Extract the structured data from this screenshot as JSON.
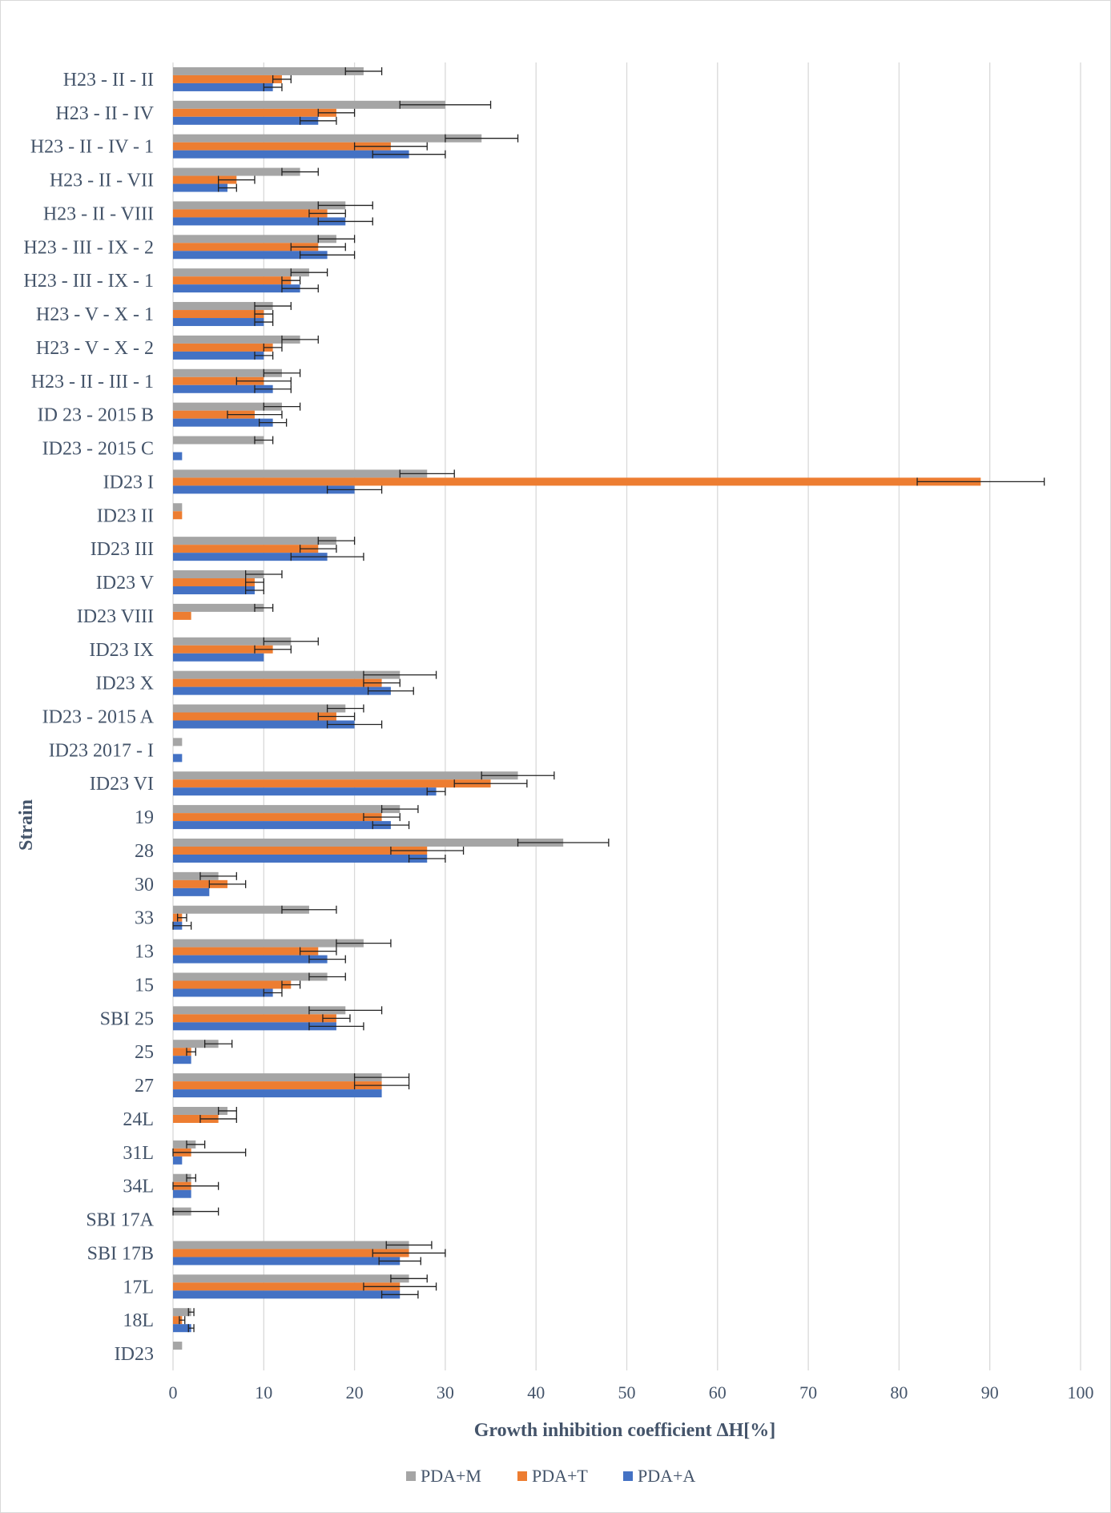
{
  "chart_data": {
    "type": "bar",
    "orientation": "horizontal",
    "xlabel": "Growth inhibition coefficient ΔH[%]",
    "ylabel": "Strain",
    "xlim": [
      0,
      100
    ],
    "xticks": [
      0,
      10,
      20,
      30,
      40,
      50,
      60,
      70,
      80,
      90,
      100
    ],
    "grid": true,
    "legend_position": "bottom",
    "colors": {
      "PDA+M": "#a5a5a5",
      "PDA+T": "#ed7d31",
      "PDA+A": "#4472c4",
      "grid": "#d9d9d9",
      "text": "#44546a"
    },
    "categories": [
      "H23 - II - II",
      "H23 - II - IV",
      "H23 - II - IV - 1",
      "H23 - II - VII",
      "H23 - II - VIII",
      "H23 - III - IX - 2",
      "H23 - III - IX - 1",
      "H23 - V - X - 1",
      "H23 - V - X - 2",
      "H23 - II - III - 1",
      "ID 23 - 2015 B",
      "ID23 - 2015 C",
      "ID23 I",
      "ID23 II",
      "ID23 III",
      "ID23 V",
      "ID23 VIII",
      "ID23 IX",
      "ID23 X",
      "ID23 - 2015 A",
      "ID23 2017 - I",
      "ID23 VI",
      "19",
      "28",
      "30",
      "33",
      "13",
      "15",
      "SBI 25",
      "25",
      "27",
      "24L",
      "31L",
      "34L",
      "SBI 17A",
      "SBI 17B",
      "17L",
      "18L",
      "ID23"
    ],
    "series": [
      {
        "name": "PDA+M",
        "values": [
          21,
          30,
          34,
          14,
          19,
          18,
          15,
          11,
          14,
          12,
          12,
          10,
          28,
          1,
          18,
          10,
          10,
          13,
          25,
          19,
          1,
          38,
          25,
          43,
          5,
          15,
          21,
          17,
          19,
          5,
          23,
          6,
          2.5,
          2,
          2,
          26,
          26,
          2,
          1
        ],
        "errors": [
          2,
          5,
          4,
          2,
          3,
          2,
          2,
          2,
          2,
          2,
          2,
          1,
          3,
          0,
          2,
          2,
          1,
          3,
          4,
          2,
          0,
          4,
          2,
          5,
          2,
          3,
          3,
          2,
          4,
          1.5,
          3,
          1,
          1,
          0.5,
          3,
          2.5,
          2,
          0.3,
          0
        ]
      },
      {
        "name": "PDA+T",
        "values": [
          12,
          18,
          24,
          7,
          17,
          16,
          13,
          10,
          11,
          10,
          9,
          0,
          89,
          1,
          16,
          9,
          2,
          11,
          23,
          18,
          0,
          35,
          23,
          28,
          6,
          1,
          16,
          13,
          18,
          2,
          23,
          5,
          2,
          2,
          0,
          26,
          25,
          1,
          0
        ],
        "errors": [
          1,
          2,
          4,
          2,
          2,
          3,
          1,
          1,
          1,
          3,
          3,
          0,
          7,
          0,
          2,
          1,
          0,
          2,
          2,
          2,
          0,
          4,
          2,
          4,
          2,
          0.5,
          2,
          1,
          1.5,
          0.5,
          3,
          2,
          6,
          3,
          0,
          4,
          4,
          0.3,
          0
        ]
      },
      {
        "name": "PDA+A",
        "values": [
          11,
          16,
          26,
          6,
          19,
          17,
          14,
          10,
          10,
          11,
          11,
          1,
          20,
          0,
          17,
          9,
          0,
          10,
          24,
          20,
          1,
          29,
          24,
          28,
          4,
          1,
          17,
          11,
          18,
          2,
          23,
          0,
          1,
          2,
          0,
          25,
          25,
          2,
          0
        ],
        "errors": [
          1,
          2,
          4,
          1,
          3,
          3,
          2,
          1,
          1,
          2,
          1.5,
          0,
          3,
          0,
          4,
          1,
          0,
          0,
          2.5,
          3,
          0,
          1,
          2,
          2,
          0,
          1,
          2,
          1,
          3,
          0,
          0,
          0,
          0,
          0,
          0,
          2.3,
          2,
          0.3,
          0
        ]
      }
    ]
  }
}
